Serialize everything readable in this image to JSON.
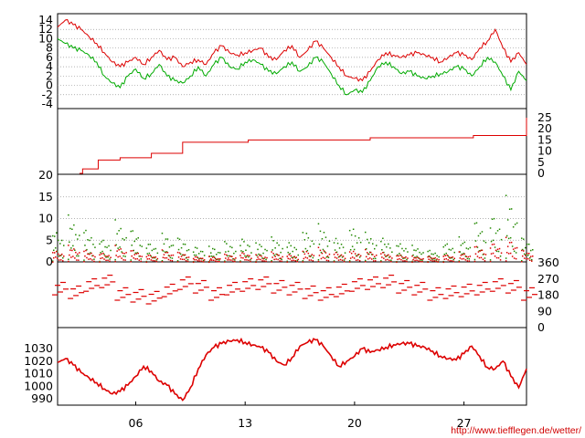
{
  "chart_data": [
    {
      "panel": "temperature",
      "type": "line",
      "ylim": [
        -4,
        14
      ],
      "yticks": [
        "14",
        "12",
        "10",
        "8",
        "6",
        "4",
        "2",
        "0",
        "-2",
        "-4"
      ],
      "x_range": [
        1,
        31
      ],
      "colors": {
        "max": "#dd0000",
        "min": "#00aa00"
      },
      "series": [
        {
          "key": "max",
          "x": [
            1,
            1.5,
            2,
            2.5,
            3,
            3.5,
            4,
            4.5,
            5,
            5.5,
            6,
            6.5,
            7,
            7.5,
            8,
            8.5,
            9,
            9.5,
            10,
            10.5,
            11,
            11.5,
            12,
            12.5,
            13,
            13.5,
            14,
            14.5,
            15,
            15.5,
            16,
            16.5,
            17,
            17.5,
            18,
            18.5,
            19,
            19.5,
            20,
            20.5,
            21,
            21.5,
            22,
            22.5,
            23,
            23.5,
            24,
            24.5,
            25,
            25.5,
            26,
            26.5,
            27,
            27.5,
            28,
            28.5,
            29,
            29.5,
            30,
            30.5,
            31
          ],
          "values": [
            12.5,
            14,
            13,
            12,
            10.5,
            9,
            7,
            5,
            4,
            5,
            6,
            4.5,
            6,
            7.5,
            5.5,
            6,
            4,
            5,
            5.5,
            4.5,
            7,
            8.5,
            7,
            6.5,
            7,
            7.5,
            8,
            6,
            5.5,
            7.5,
            8.5,
            6,
            7.5,
            9.5,
            8,
            6,
            4,
            2,
            1.5,
            1,
            3,
            5.5,
            7,
            6.5,
            6,
            6.5,
            7,
            6.5,
            6,
            5,
            6,
            7,
            6.5,
            5.5,
            8,
            9.5,
            12,
            8,
            5,
            7,
            4.5
          ]
        },
        {
          "key": "min",
          "x": [
            1,
            1.5,
            2,
            2.5,
            3,
            3.5,
            4,
            4.5,
            5,
            5.5,
            6,
            6.5,
            7,
            7.5,
            8,
            8.5,
            9,
            9.5,
            10,
            10.5,
            11,
            11.5,
            12,
            12.5,
            13,
            13.5,
            14,
            14.5,
            15,
            15.5,
            16,
            16.5,
            17,
            17.5,
            18,
            18.5,
            19,
            19.5,
            20,
            20.5,
            21,
            21.5,
            22,
            22.5,
            23,
            23.5,
            24,
            24.5,
            25,
            25.5,
            26,
            26.5,
            27,
            27.5,
            28,
            28.5,
            29,
            29.5,
            30,
            30.5,
            31
          ],
          "values": [
            10,
            9,
            8,
            7.5,
            6.5,
            5,
            2,
            0.5,
            -0.5,
            2,
            3.5,
            1.5,
            2.5,
            4.5,
            2,
            1,
            0.5,
            2,
            4,
            2,
            4.5,
            6,
            4,
            3.5,
            5,
            5.5,
            4.5,
            3,
            2.5,
            4,
            5,
            3,
            4,
            6,
            5,
            2.5,
            0,
            -2,
            -1,
            -1.5,
            1,
            4,
            5,
            4,
            2.5,
            3,
            2,
            1.5,
            2,
            2.5,
            3,
            4,
            3.5,
            2,
            4,
            6,
            5,
            2,
            -1,
            3,
            1
          ]
        }
      ]
    },
    {
      "panel": "precipitation",
      "type": "line",
      "ylim": [
        0,
        25
      ],
      "yticks": [
        "25",
        "20",
        "15",
        "10",
        "5",
        "0"
      ],
      "color": "#dd0000",
      "series": [
        {
          "key": "cumulative",
          "x": [
            2.4,
            2.6,
            3.4,
            3.6,
            4.8,
            5,
            6.6,
            7,
            8.6,
            9,
            12.8,
            13.2,
            20.2,
            21,
            27.6,
            30.8,
            31
          ],
          "values": [
            0,
            2,
            2,
            6,
            6,
            7,
            7,
            9,
            9,
            14,
            14,
            15,
            15,
            16,
            17,
            17,
            25
          ]
        }
      ]
    },
    {
      "panel": "wind_speed",
      "type": "scatter",
      "ylim": [
        0,
        20
      ],
      "yticks": [
        "20",
        "15",
        "10",
        "5",
        "0"
      ],
      "colors": {
        "max": "#228800",
        "mean": "#dd0000"
      },
      "series": [
        {
          "key": "max",
          "x": [
            1,
            2,
            3,
            4,
            5,
            6,
            7,
            8,
            9,
            10,
            11,
            12,
            13,
            14,
            15,
            16,
            17,
            18,
            19,
            20,
            21,
            22,
            23,
            24,
            25,
            26,
            27,
            28,
            29,
            30,
            31
          ],
          "values": [
            8,
            11,
            8,
            6,
            10,
            8,
            5,
            7,
            6,
            4,
            4,
            5,
            6,
            5,
            6,
            5,
            8,
            9,
            6,
            9,
            7,
            6,
            5,
            4,
            3,
            5,
            6,
            10,
            12,
            16,
            6
          ]
        },
        {
          "key": "mean",
          "x": [
            1,
            2,
            3,
            4,
            5,
            6,
            7,
            8,
            9,
            10,
            11,
            12,
            13,
            14,
            15,
            16,
            17,
            18,
            19,
            20,
            21,
            22,
            23,
            24,
            25,
            26,
            27,
            28,
            29,
            30,
            31
          ],
          "values": [
            3,
            4,
            3,
            2.5,
            4,
            3,
            2,
            3,
            2.5,
            1.5,
            1.5,
            2,
            2.5,
            2,
            2.5,
            2,
            3,
            3.5,
            2.5,
            3,
            3,
            2.5,
            2,
            1.5,
            1.5,
            2,
            2.5,
            4,
            5,
            6,
            3
          ]
        }
      ]
    },
    {
      "panel": "wind_direction",
      "type": "scatter",
      "ylim": [
        0,
        360
      ],
      "yticks": [
        "360",
        "270",
        "180",
        "90",
        "0"
      ],
      "color": "#dd0000",
      "series": [
        {
          "key": "direction",
          "x": [
            1,
            2,
            3,
            4,
            5,
            6,
            7,
            8,
            9,
            10,
            11,
            12,
            13,
            14,
            15,
            16,
            17,
            18,
            19,
            20,
            21,
            22,
            23,
            24,
            25,
            26,
            27,
            28,
            29,
            30,
            31
          ],
          "values": [
            230,
            210,
            250,
            270,
            200,
            190,
            180,
            220,
            260,
            240,
            200,
            230,
            250,
            260,
            240,
            230,
            210,
            200,
            220,
            250,
            260,
            270,
            240,
            230,
            200,
            210,
            220,
            230,
            250,
            240,
            200
          ]
        }
      ]
    },
    {
      "panel": "pressure",
      "type": "line",
      "ylim": [
        988,
        1038
      ],
      "yticks": [
        "1030",
        "1020",
        "1010",
        "1000",
        "990"
      ],
      "color": "#dd0000",
      "series": [
        {
          "key": "pressure",
          "x": [
            1,
            1.5,
            2,
            2.5,
            3,
            3.5,
            4,
            4.5,
            5,
            5.5,
            6,
            6.5,
            7,
            7.5,
            8,
            8.5,
            9,
            9.5,
            10,
            10.5,
            11,
            11.5,
            12,
            12.5,
            13,
            13.5,
            14,
            14.5,
            15,
            15.5,
            16,
            16.5,
            17,
            17.5,
            18,
            18.5,
            19,
            19.5,
            20,
            20.5,
            21,
            21.5,
            22,
            22.5,
            23,
            23.5,
            24,
            24.5,
            25,
            25.5,
            26,
            26.5,
            27,
            27.5,
            28,
            28.5,
            29,
            29.5,
            30,
            30.5,
            31
          ],
          "values": [
            1019,
            1022,
            1017,
            1011,
            1007,
            1003,
            998,
            994,
            996,
            1001,
            1008,
            1016,
            1012,
            1004,
            1001,
            994,
            989,
            999,
            1014,
            1025,
            1031,
            1034,
            1036,
            1037,
            1035,
            1033,
            1031,
            1027,
            1020,
            1017,
            1023,
            1032,
            1035,
            1037,
            1032,
            1024,
            1016,
            1020,
            1024,
            1030,
            1027,
            1029,
            1031,
            1033,
            1034,
            1034,
            1032,
            1031,
            1028,
            1024,
            1022,
            1021,
            1026,
            1032,
            1024,
            1015,
            1014,
            1020,
            1008,
            999,
            1014
          ]
        }
      ]
    }
  ],
  "x_axis": {
    "range": [
      1,
      31
    ],
    "tick_values": [
      6,
      13,
      20,
      27
    ],
    "tick_labels": [
      "06",
      "13",
      "20",
      "27"
    ]
  },
  "credit": "http://www.tiefflegen.de/wetter/"
}
